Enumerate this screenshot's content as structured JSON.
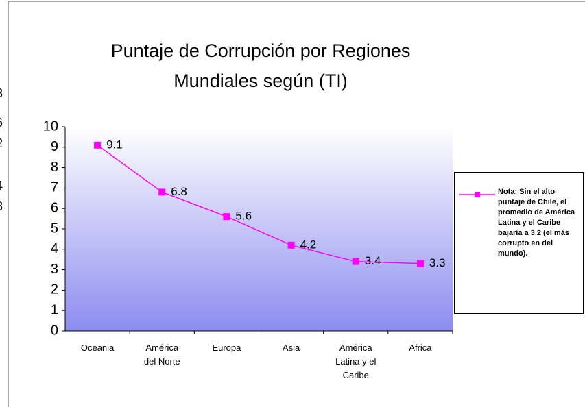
{
  "chart_data": {
    "type": "line",
    "title": "Puntaje de Corrupción por Regiones\nMundiales  según (TI)",
    "categories": [
      "Oceania",
      "América\ndel Norte",
      "Europa",
      "Asia",
      "América\nLatina y el\nCaribe",
      "Africa"
    ],
    "series": [
      {
        "name": "Nota: Sin el alto puntaje de Chile, el promedio de América Latina y el Caribe bajaría a 3.2 (el más corrupto en del mundo).",
        "color": "#ff00ff",
        "values": [
          9.1,
          6.8,
          5.6,
          4.2,
          3.4,
          3.3
        ]
      }
    ],
    "ylim": [
      0,
      10
    ],
    "yticks": [
      0,
      1,
      2,
      3,
      4,
      5,
      6,
      7,
      8,
      9,
      10
    ],
    "legend": "right",
    "side_fragments": [
      "l",
      "3",
      "6",
      "2",
      "4",
      "8"
    ]
  }
}
